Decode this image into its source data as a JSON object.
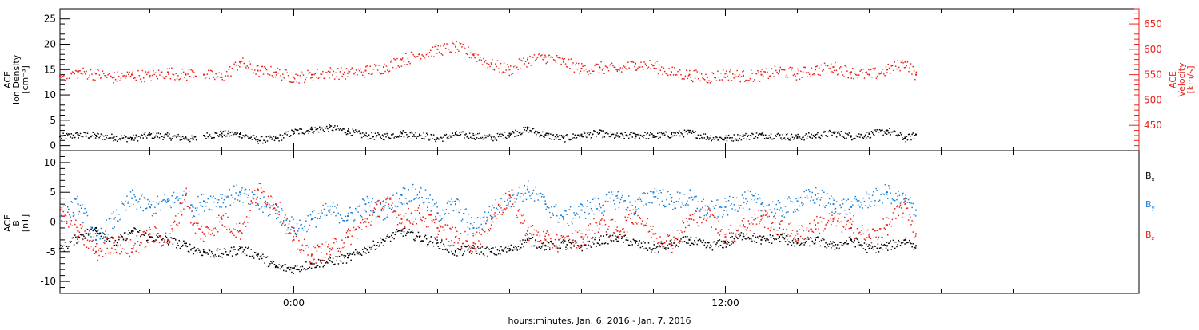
{
  "colors": {
    "black": "#000000",
    "red": "#e8231c",
    "blue": "#1a7fd6"
  },
  "chart_data": [
    {
      "panel": "top",
      "type": "scatter",
      "ylabel_left": [
        "ACE",
        "Ion Density",
        "[cm⁻³]"
      ],
      "ylabel_right": [
        "ACE",
        "Velocity",
        "[km/s]"
      ],
      "x_axis": {
        "range_hours": [
          -6.5,
          23.5
        ],
        "tick_labels": [
          "0:00",
          "12:00"
        ],
        "label": "hours:minutes, Jan.  6, 2016 - Jan.  7, 2016"
      },
      "left_axis": {
        "range": [
          -1,
          27
        ],
        "ticks": [
          "0",
          "5",
          "10",
          "15",
          "20",
          "25"
        ]
      },
      "right_axis": {
        "range": [
          400,
          680
        ],
        "ticks": [
          "450",
          "500",
          "550",
          "600",
          "650"
        ]
      },
      "series": [
        {
          "color": "black",
          "axis": "left",
          "data_gaps_hours": [
            [
              -2.7,
              -2.5
            ]
          ],
          "x": [
            -6.5,
            -6,
            -5.5,
            -5,
            -4.5,
            -4,
            -3.5,
            -3,
            -2.8,
            -2.5,
            -2,
            -1.5,
            -1,
            -0.5,
            0,
            0.5,
            1,
            1.5,
            2,
            2.5,
            3,
            3.5,
            4,
            4.5,
            5,
            5.5,
            6,
            6.5,
            7,
            7.5,
            8,
            8.5,
            9,
            9.5,
            10,
            10.5,
            11,
            11.5,
            12,
            12.5,
            13,
            13.5,
            14,
            14.5,
            15,
            15.5,
            16,
            16.5,
            17,
            17.3
          ],
          "y": [
            1.8,
            2.2,
            2.0,
            1.7,
            1.5,
            2.2,
            1.9,
            1.6,
            1.3,
            2.0,
            2.4,
            2.3,
            1.2,
            1.4,
            2.8,
            3.2,
            3.6,
            2.9,
            2.0,
            1.9,
            2.5,
            2.2,
            1.4,
            2.3,
            2.0,
            1.6,
            2.4,
            3.3,
            2.1,
            1.5,
            2.2,
            2.5,
            1.9,
            2.2,
            2.0,
            2.3,
            2.6,
            1.8,
            1.5,
            1.9,
            2.2,
            2.0,
            1.7,
            2.1,
            2.6,
            1.9,
            2.3,
            3.0,
            1.5,
            2.2
          ]
        },
        {
          "color": "red",
          "axis": "right",
          "data_gaps_hours": [
            [
              -2.7,
              -2.5
            ]
          ],
          "x": [
            -6.5,
            -6,
            -5.5,
            -5,
            -4.5,
            -4,
            -3.5,
            -3,
            -2.8,
            -2.5,
            -2,
            -1.5,
            -1,
            -0.5,
            0,
            0.5,
            1,
            1.5,
            2,
            2.5,
            3,
            3.5,
            4,
            4.5,
            5,
            5.5,
            6,
            6.5,
            7,
            7.5,
            8,
            8.5,
            9,
            9.5,
            10,
            10.5,
            11,
            11.5,
            12,
            12.5,
            13,
            13.5,
            14,
            14.5,
            15,
            15.5,
            16,
            16.5,
            17,
            17.3
          ],
          "y": [
            548,
            555,
            552,
            545,
            550,
            548,
            555,
            550,
            556,
            550,
            545,
            575,
            558,
            555,
            545,
            550,
            555,
            553,
            558,
            565,
            580,
            590,
            600,
            605,
            590,
            570,
            560,
            580,
            585,
            575,
            562,
            565,
            560,
            572,
            568,
            555,
            550,
            545,
            552,
            548,
            550,
            558,
            552,
            560,
            565,
            555,
            550,
            560,
            575,
            550
          ]
        }
      ]
    },
    {
      "panel": "bottom",
      "type": "scatter",
      "ylabel_left": [
        "ACE",
        "B",
        "[nT]"
      ],
      "left_axis": {
        "range": [
          -12,
          12
        ],
        "ticks": [
          "-10",
          "-5",
          "0",
          "5",
          "10"
        ]
      },
      "zero_line": true,
      "legend": {
        "placement": "right"
      },
      "series": [
        {
          "name": "Bx",
          "legend_main": "B",
          "legend_sub": "x",
          "color": "black",
          "x": [
            -6.5,
            -6,
            -5.5,
            -5,
            -4.5,
            -4,
            -3.5,
            -3,
            -2.8,
            -2.5,
            -2,
            -1.5,
            -1,
            -0.5,
            0,
            0.5,
            1,
            1.5,
            2,
            2.5,
            3,
            3.5,
            4,
            4.5,
            5,
            5.5,
            6,
            6.5,
            7,
            7.5,
            8,
            8.5,
            9,
            9.5,
            10,
            10.5,
            11,
            11.5,
            12,
            12.5,
            13,
            13.5,
            14,
            14.5,
            15,
            15.5,
            16,
            16.5,
            17,
            17.3
          ],
          "y": [
            -4.5,
            -2.5,
            -1.0,
            -3.5,
            -1.5,
            -2.5,
            -3.0,
            -4.0,
            -4.5,
            -5.0,
            -5.3,
            -4.5,
            -5.5,
            -7.5,
            -7.8,
            -7.0,
            -6.5,
            -6.0,
            -4.5,
            -3.0,
            -1.5,
            -2.5,
            -3.5,
            -5.0,
            -4.5,
            -5.0,
            -4.5,
            -3.0,
            -4.0,
            -3.5,
            -4.0,
            -3.0,
            -2.5,
            -3.5,
            -4.5,
            -3.5,
            -3.0,
            -4.0,
            -3.5,
            -2.0,
            -3.0,
            -2.5,
            -3.5,
            -3.0,
            -4.0,
            -3.0,
            -4.5,
            -4.0,
            -3.0,
            -4.0
          ]
        },
        {
          "name": "By",
          "legend_main": "B",
          "legend_sub": "y",
          "color": "blue",
          "x": [
            -6.5,
            -6,
            -5.5,
            -5,
            -4.5,
            -4,
            -3.5,
            -3,
            -2.8,
            -2.5,
            -2,
            -1.5,
            -1,
            -0.5,
            0,
            0.5,
            1,
            1.5,
            2,
            2.5,
            3,
            3.5,
            4,
            4.5,
            5,
            5.5,
            6,
            6.5,
            7,
            7.5,
            8,
            8.5,
            9,
            9.5,
            10,
            10.5,
            11,
            11.5,
            12,
            12.5,
            13,
            13.5,
            14,
            14.5,
            15,
            15.5,
            16,
            16.5,
            17,
            17.3
          ],
          "y": [
            1.0,
            3.0,
            -3.0,
            0.5,
            4.0,
            2.5,
            3.5,
            4.5,
            2.5,
            3.5,
            4.0,
            5.0,
            3.0,
            2.0,
            -1.0,
            0.5,
            2.0,
            1.0,
            3.0,
            2.0,
            4.5,
            5.0,
            1.5,
            3.0,
            -1.0,
            2.0,
            4.0,
            5.5,
            3.0,
            0.5,
            2.0,
            3.0,
            4.0,
            2.5,
            5.0,
            3.5,
            4.0,
            2.0,
            2.5,
            4.0,
            3.0,
            2.0,
            3.5,
            4.5,
            3.0,
            2.5,
            4.0,
            5.0,
            3.5,
            2.0
          ]
        },
        {
          "name": "Bz",
          "legend_main": "B",
          "legend_sub": "z",
          "color": "red",
          "x": [
            -6.5,
            -6,
            -5.5,
            -5,
            -4.5,
            -4,
            -3.5,
            -3,
            -2.8,
            -2.5,
            -2,
            -1.5,
            -1,
            -0.5,
            0,
            0.5,
            1,
            1.5,
            2,
            2.5,
            3,
            3.5,
            4,
            4.5,
            5,
            5.5,
            6,
            6.5,
            7,
            7.5,
            8,
            8.5,
            9,
            9.5,
            10,
            10.5,
            11,
            11.5,
            12,
            12.5,
            13,
            13.5,
            14,
            14.5,
            15,
            15.5,
            16,
            16.5,
            17,
            17.3
          ],
          "y": [
            2.0,
            -1.5,
            -5.0,
            -3.5,
            -4.5,
            -2.0,
            -3.0,
            4.5,
            -0.5,
            -2.0,
            0.5,
            -1.5,
            5.5,
            3.0,
            -3.0,
            -5.5,
            -4.5,
            -2.5,
            0.0,
            3.5,
            0.5,
            1.5,
            -1.0,
            -2.5,
            -3.5,
            0.5,
            4.5,
            -1.5,
            -3.0,
            -3.5,
            -2.5,
            0.0,
            -1.5,
            1.5,
            -2.0,
            -3.5,
            0.5,
            1.5,
            -2.5,
            -0.5,
            1.0,
            -1.0,
            -2.0,
            -0.5,
            0.5,
            -1.0,
            -2.5,
            -0.5,
            3.0,
            -2.0
          ]
        }
      ]
    }
  ]
}
